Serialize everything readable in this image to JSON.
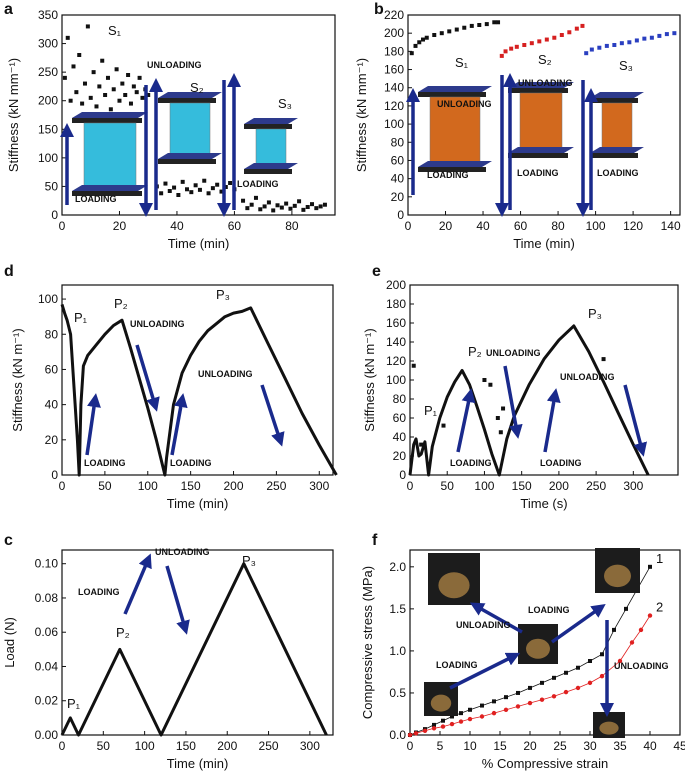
{
  "chart_data": [
    {
      "type": "scatter",
      "panel": "a",
      "x_label": "Time (min)",
      "y_label": "Stiffness (kN mm⁻¹)",
      "xlim": [
        0,
        95
      ],
      "xticks": [
        0,
        20,
        40,
        60,
        80
      ],
      "ylim": [
        0,
        350
      ],
      "yticks": [
        0,
        50,
        100,
        150,
        200,
        250,
        300,
        350
      ],
      "annotations": [
        "S₁",
        "UNLOADING",
        "S₂",
        "S₃",
        "LOADING",
        "LOADING"
      ],
      "series": [
        {
          "color": "#111111",
          "style": "markers",
          "x": [
            1,
            2,
            3,
            4,
            5,
            6,
            7,
            8,
            9,
            10,
            11,
            12,
            13,
            14,
            15,
            16,
            17,
            18,
            19,
            20,
            21,
            22,
            23,
            24,
            25,
            26,
            27,
            28,
            29,
            30
          ],
          "values": [
            240,
            310,
            200,
            260,
            215,
            280,
            195,
            230,
            330,
            205,
            250,
            190,
            225,
            270,
            210,
            240,
            185,
            220,
            255,
            200,
            230,
            210,
            245,
            195,
            225,
            215,
            240,
            205,
            220,
            210
          ]
        },
        {
          "color": "#111111",
          "style": "markers",
          "x": [
            33,
            34.5,
            36,
            37.5,
            39,
            40.5,
            42,
            43.5,
            45,
            46.5,
            48,
            49.5,
            51,
            52.5,
            54,
            55.5,
            57,
            58.5,
            60
          ],
          "values": [
            50,
            38,
            55,
            42,
            48,
            35,
            58,
            45,
            40,
            52,
            44,
            60,
            38,
            47,
            53,
            41,
            49,
            56,
            45
          ]
        },
        {
          "color": "#111111",
          "style": "markers",
          "x": [
            63,
            64.5,
            66,
            67.5,
            69,
            70.5,
            72,
            73.5,
            75,
            76.5,
            78,
            79.5,
            81,
            82.5,
            84,
            85.5,
            87,
            88.5,
            90,
            91.5
          ],
          "values": [
            25,
            12,
            18,
            30,
            10,
            15,
            22,
            8,
            17,
            13,
            20,
            11,
            16,
            24,
            9,
            14,
            19,
            12,
            15,
            18
          ]
        }
      ]
    },
    {
      "type": "scatter",
      "panel": "b",
      "x_label": "Time (min)",
      "y_label": "Stiffness (kN mm⁻¹)",
      "xlim": [
        0,
        145
      ],
      "xticks": [
        0,
        20,
        40,
        60,
        80,
        100,
        120,
        140
      ],
      "ylim": [
        0,
        220
      ],
      "yticks": [
        0,
        20,
        40,
        60,
        80,
        100,
        120,
        140,
        160,
        180,
        200,
        220
      ],
      "annotations": [
        "S₁",
        "UNLOADING",
        "S₂",
        "UNLOADING",
        "S₃",
        "LOADING",
        "LOADING",
        "LOADING"
      ],
      "series": [
        {
          "color": "#111111",
          "style": "markers",
          "x": [
            2,
            4,
            6,
            8,
            10,
            14,
            18,
            22,
            26,
            30,
            34,
            38,
            42,
            46,
            48
          ],
          "values": [
            178,
            186,
            190,
            193,
            195,
            198,
            200,
            202,
            204,
            206,
            208,
            209,
            210,
            212,
            212
          ]
        },
        {
          "color": "#d62020",
          "style": "markers",
          "x": [
            50,
            52,
            55,
            58,
            62,
            66,
            70,
            74,
            78,
            82,
            86,
            90,
            93
          ],
          "values": [
            175,
            180,
            183,
            185,
            187,
            189,
            191,
            193,
            195,
            198,
            201,
            205,
            208
          ]
        },
        {
          "color": "#2a3fc0",
          "style": "markers",
          "x": [
            95,
            98,
            102,
            106,
            110,
            114,
            118,
            122,
            126,
            130,
            134,
            138,
            142
          ],
          "values": [
            178,
            182,
            184,
            186,
            187,
            189,
            190,
            192,
            194,
            195,
            197,
            199,
            200
          ]
        }
      ]
    },
    {
      "type": "line",
      "panel": "d",
      "x_label": "Time (min)",
      "y_label": "Stiffness (kN m⁻¹)",
      "xlim": [
        0,
        316
      ],
      "xticks": [
        0,
        50,
        100,
        150,
        200,
        250,
        300
      ],
      "ylim": [
        0,
        108
      ],
      "yticks": [
        0,
        20,
        40,
        60,
        80,
        100
      ],
      "annotations": [
        "P₁",
        "P₂",
        "UNLOADING",
        "P₃",
        "UNLOADING",
        "LOADING",
        "LOADING"
      ],
      "series": [
        {
          "color": "#111111",
          "style": "line",
          "x": [
            0,
            3,
            6,
            10,
            14,
            18,
            20,
            22,
            25,
            30,
            40,
            50,
            60,
            70,
            80,
            90,
            100,
            110,
            120,
            122,
            130,
            140,
            150,
            160,
            170,
            180,
            190,
            200,
            210,
            220,
            240,
            260,
            280,
            300,
            320
          ],
          "values": [
            97,
            92,
            88,
            80,
            50,
            20,
            0,
            40,
            62,
            68,
            74,
            80,
            85,
            88,
            72,
            55,
            38,
            20,
            0,
            10,
            40,
            58,
            68,
            76,
            82,
            86,
            90,
            92,
            93,
            95,
            75,
            55,
            35,
            17,
            0
          ]
        }
      ]
    },
    {
      "type": "line",
      "panel": "e",
      "x_label": "Time (s)",
      "y_label": "Stiffness (kN m⁻¹)",
      "xlim": [
        0,
        360
      ],
      "xticks": [
        0,
        50,
        100,
        150,
        200,
        250,
        300
      ],
      "ylim": [
        0,
        200
      ],
      "yticks": [
        0,
        20,
        40,
        60,
        80,
        100,
        120,
        140,
        160,
        180,
        200
      ],
      "annotations": [
        "P₁",
        "P₂",
        "UNLOADING",
        "P₃",
        "UNLOADING",
        "LOADING",
        "LOADING"
      ],
      "series": [
        {
          "color": "#111111",
          "style": "line",
          "x": [
            0,
            5,
            8,
            12,
            15,
            20,
            25,
            30,
            40,
            50,
            60,
            70,
            80,
            90,
            100,
            110,
            120,
            130,
            140,
            160,
            180,
            200,
            220,
            240,
            260,
            280,
            300,
            320
          ],
          "values": [
            0,
            32,
            38,
            20,
            22,
            35,
            0,
            30,
            60,
            82,
            98,
            110,
            95,
            72,
            48,
            22,
            0,
            38,
            62,
            95,
            122,
            142,
            157,
            130,
            98,
            65,
            32,
            0
          ]
        },
        {
          "color": "#111111",
          "style": "markers",
          "x": [
            5,
            15,
            45,
            100,
            108,
            118,
            122,
            125,
            260
          ],
          "values": [
            115,
            32,
            52,
            100,
            95,
            60,
            45,
            70,
            122
          ]
        }
      ]
    },
    {
      "type": "line",
      "panel": "c",
      "x_label": "Time (min)",
      "y_label": "Load (N)",
      "xlim": [
        0,
        328
      ],
      "xticks": [
        0,
        50,
        100,
        150,
        200,
        250,
        300
      ],
      "ylim": [
        0,
        0.108
      ],
      "yticks": [
        {
          "value": 0,
          "label": "0.00"
        },
        {
          "value": 0.02,
          "label": "0.02"
        },
        {
          "value": 0.04,
          "label": "0.04"
        },
        {
          "value": 0.06,
          "label": "0.06"
        },
        {
          "value": 0.08,
          "label": "0.08"
        },
        {
          "value": 0.1,
          "label": "0.10"
        }
      ],
      "annotations": [
        "P₁",
        "P₂",
        "P₃",
        "LOADING",
        "UNLOADING"
      ],
      "series": [
        {
          "color": "#111111",
          "style": "line",
          "x": [
            0,
            10,
            20,
            70,
            120,
            220,
            320
          ],
          "values": [
            0,
            0.01,
            0,
            0.05,
            0,
            0.1,
            0
          ]
        }
      ]
    },
    {
      "type": "line",
      "panel": "f",
      "x_label": "% Compressive strain",
      "y_label": "Compressive stress (MPa)",
      "xlim": [
        0,
        45
      ],
      "xticks": [
        0,
        5,
        10,
        15,
        20,
        25,
        30,
        35,
        40,
        45
      ],
      "ylim": [
        0,
        2.2
      ],
      "yticks": [
        {
          "value": 0,
          "label": "0.0"
        },
        0.5,
        {
          "value": 1,
          "label": "1.0"
        },
        1.5,
        {
          "value": 2,
          "label": "2.0"
        }
      ],
      "annotations": [
        "UNLOADING",
        "LOADING",
        "LOADING",
        "UNLOADING"
      ],
      "series": [
        {
          "name": "1",
          "color": "#111111",
          "style": "line+markers",
          "marker": "square",
          "x": [
            0,
            1,
            2.5,
            4,
            5.5,
            7,
            8.5,
            10,
            12,
            14,
            16,
            18,
            20,
            22,
            24,
            26,
            28,
            30,
            32,
            34,
            36,
            38,
            40
          ],
          "values": [
            0,
            0.03,
            0.07,
            0.12,
            0.17,
            0.22,
            0.26,
            0.3,
            0.35,
            0.4,
            0.45,
            0.5,
            0.56,
            0.62,
            0.68,
            0.74,
            0.8,
            0.88,
            0.96,
            1.25,
            1.5,
            1.75,
            2.0
          ]
        },
        {
          "name": "2",
          "color": "#e02020",
          "style": "line+markers",
          "marker": "circle",
          "x": [
            0,
            1,
            2.5,
            4,
            5.5,
            7,
            8.5,
            10,
            12,
            14,
            16,
            18,
            20,
            22,
            24,
            26,
            28,
            30,
            32,
            35,
            37,
            38.5,
            40
          ],
          "values": [
            0,
            0.02,
            0.05,
            0.08,
            0.1,
            0.13,
            0.16,
            0.19,
            0.22,
            0.26,
            0.3,
            0.34,
            0.38,
            0.42,
            0.46,
            0.51,
            0.56,
            0.62,
            0.7,
            0.88,
            1.1,
            1.25,
            1.42
          ]
        }
      ]
    }
  ]
}
